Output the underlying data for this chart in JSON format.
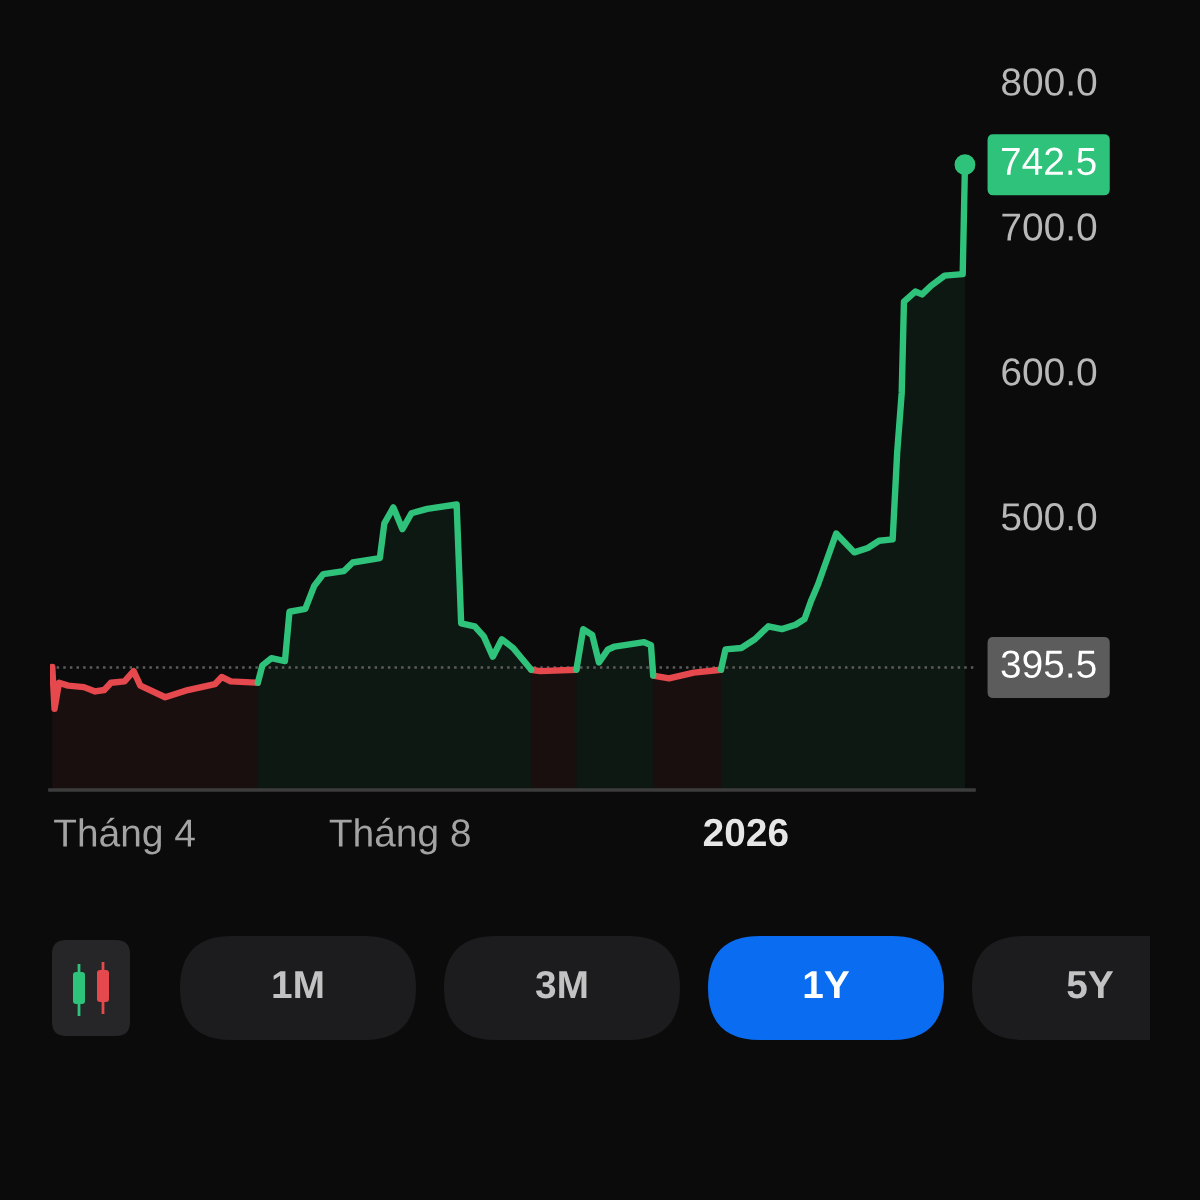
{
  "chart_data": [
    {
      "type": "area",
      "x": [
        "2025-02-28",
        "2025-03-01",
        "2025-03-03",
        "2025-03-07",
        "2025-03-14",
        "2025-03-19",
        "2025-03-23",
        "2025-03-26",
        "2025-04-01",
        "2025-04-05",
        "2025-04-08",
        "2025-04-19",
        "2025-04-29",
        "2025-05-11",
        "2025-05-14",
        "2025-05-18",
        "2025-05-30",
        "2025-06-01",
        "2025-06-05",
        "2025-06-11",
        "2025-06-13",
        "2025-06-20",
        "2025-06-24",
        "2025-06-28",
        "2025-07-07",
        "2025-07-11",
        "2025-07-23",
        "2025-07-25",
        "2025-07-29",
        "2025-08-02",
        "2025-08-06",
        "2025-08-13",
        "2025-08-26",
        "2025-08-28",
        "2025-09-03",
        "2025-09-07",
        "2025-09-11",
        "2025-09-15",
        "2025-09-20",
        "2025-09-28",
        "2025-10-02",
        "2025-10-18",
        "2025-10-21",
        "2025-10-25",
        "2025-10-28",
        "2025-11-01",
        "2025-11-04",
        "2025-11-17",
        "2025-11-20",
        "2025-11-21",
        "2025-11-28",
        "2025-12-09",
        "2025-12-21",
        "2025-12-23",
        "2025-12-30",
        "2026-01-05",
        "2026-01-11",
        "2026-01-17",
        "2026-01-23",
        "2026-01-27",
        "2026-01-30",
        "2026-02-02",
        "2026-02-10",
        "2026-02-18",
        "2026-02-24",
        "2026-03-01",
        "2026-03-07",
        "2026-03-09",
        "2026-03-11",
        "2026-03-12",
        "2026-03-17",
        "2026-03-20",
        "2026-03-24",
        "2026-03-30",
        "2026-04-07",
        "2026-04-08"
      ],
      "series": [
        {
          "color": "#e5484d",
          "values": [
            396,
            367,
            385,
            383,
            382,
            379,
            380,
            385,
            386,
            393,
            383,
            375,
            380,
            384,
            389,
            386,
            385,
            null,
            null,
            null,
            null,
            null,
            null,
            null,
            null,
            null,
            null,
            null,
            null,
            null,
            null,
            null,
            null,
            null,
            null,
            null,
            null,
            null,
            null,
            394,
            393,
            394,
            null,
            null,
            null,
            null,
            null,
            null,
            null,
            390,
            388,
            392,
            394,
            null,
            null,
            null,
            null,
            null,
            null,
            null,
            null,
            null,
            null,
            null,
            null,
            null,
            null,
            null,
            null,
            null,
            null,
            null,
            null,
            null,
            null,
            null
          ]
        },
        {
          "color": "#2fc27a",
          "values": [
            null,
            null,
            null,
            null,
            null,
            null,
            null,
            null,
            null,
            null,
            null,
            null,
            null,
            null,
            null,
            null,
            385,
            397,
            402,
            400,
            434,
            436,
            452,
            460,
            462,
            468,
            471,
            495,
            506,
            491,
            502,
            505,
            508,
            426,
            424,
            417,
            403,
            415,
            409,
            394,
            null,
            394,
            422,
            418,
            399,
            408,
            410,
            413,
            411,
            390,
            null,
            null,
            394,
            408,
            409,
            415,
            424,
            422,
            425,
            429,
            442,
            453,
            488,
            475,
            478,
            483,
            484,
            544,
            585,
            648,
            655,
            653,
            659,
            666,
            667,
            742.5
          ]
        }
      ],
      "xlim": [
        "2025-02-27",
        "2026-04-12"
      ],
      "xticks": [
        {
          "value": "2025-04-01",
          "label": "Tháng 4"
        },
        {
          "value": "2025-08-01",
          "label": "Tháng 8"
        },
        {
          "value": "2026-01-01",
          "label": "2026"
        }
      ],
      "ylim": [
        311,
        800
      ],
      "yticks": [
        {
          "value": 500,
          "label": "500.0"
        },
        {
          "value": 600,
          "label": "600.0"
        },
        {
          "value": 700,
          "label": "700.0"
        },
        {
          "value": 800,
          "label": "800.0"
        }
      ],
      "ref_lines": [
        {
          "axis": "y",
          "value": 395.5,
          "label": "395.5",
          "color": "#5c5c5c",
          "line_style": "dotted"
        }
      ],
      "annotations": [
        {
          "text": "742.5",
          "x": "2026-04-08",
          "y": 742.5
        }
      ],
      "grid": false
    },
    {
      "type": "other",
      "categories": [
        "1M",
        "3M",
        "1Y",
        "5Y"
      ],
      "colors": [
        "#1c1c1e",
        "#1c1c1e",
        "#0a6cf0",
        "#1c1c1e"
      ]
    }
  ]
}
